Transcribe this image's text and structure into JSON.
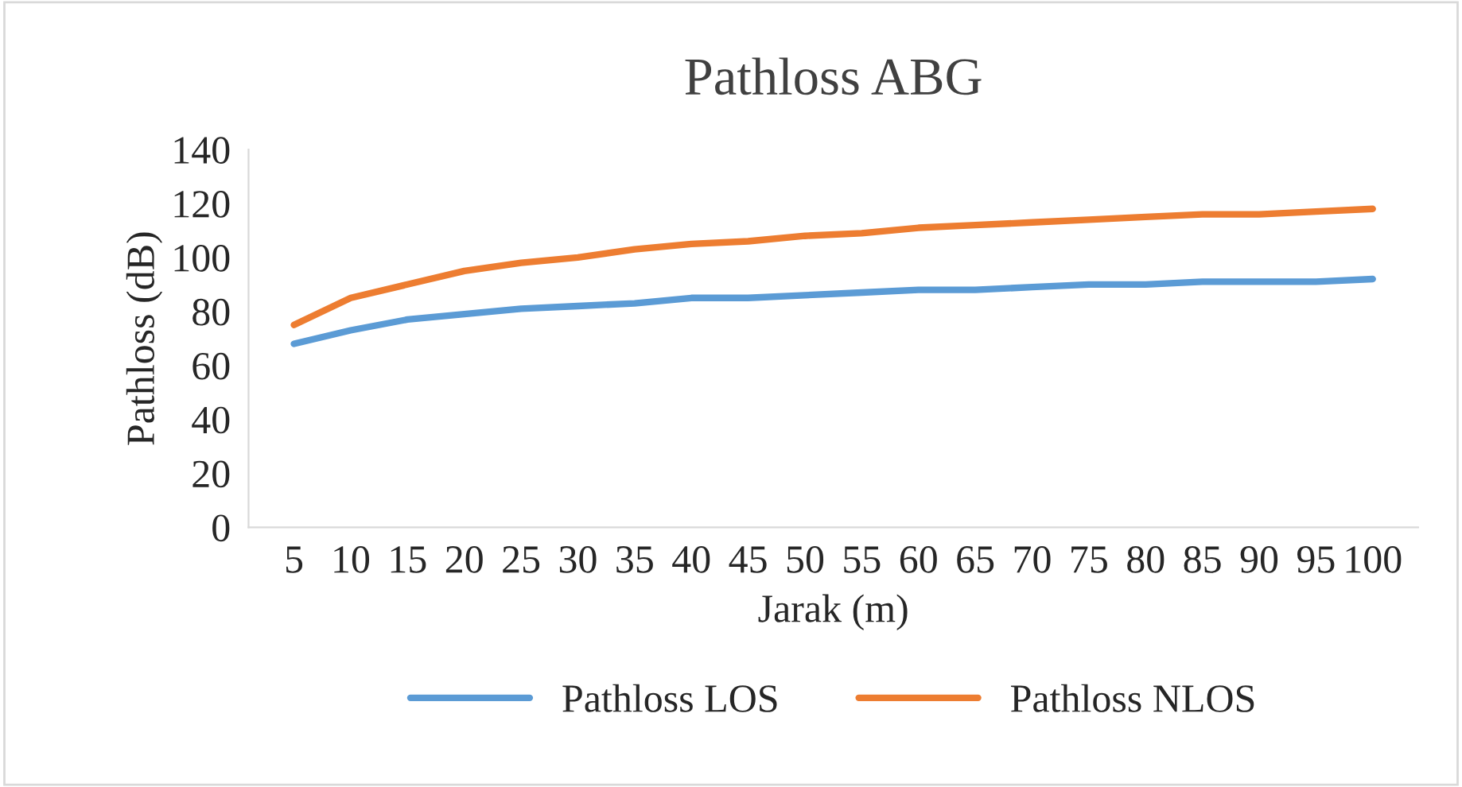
{
  "chart_data": {
    "type": "line",
    "title": "Pathloss ABG",
    "xlabel": "Jarak (m)",
    "ylabel": "Pathloss (dB)",
    "categories": [
      "5",
      "10",
      "15",
      "20",
      "25",
      "30",
      "35",
      "40",
      "45",
      "50",
      "55",
      "60",
      "65",
      "70",
      "75",
      "80",
      "85",
      "90",
      "95",
      "100"
    ],
    "series": [
      {
        "name": "Pathloss LOS",
        "color": "#5b9bd5",
        "values": [
          68,
          73,
          77,
          79,
          81,
          82,
          83,
          85,
          85,
          86,
          87,
          88,
          88,
          89,
          90,
          90,
          91,
          91,
          91,
          92
        ]
      },
      {
        "name": "Pathloss NLOS",
        "color": "#ed7d31",
        "values": [
          75,
          85,
          90,
          95,
          98,
          100,
          103,
          105,
          106,
          108,
          109,
          111,
          112,
          113,
          114,
          115,
          116,
          116,
          117,
          118
        ]
      }
    ],
    "ylim": [
      0,
      140
    ],
    "yticks": [
      0,
      20,
      40,
      60,
      80,
      100,
      120,
      140
    ],
    "grid": false,
    "legend": "bottom",
    "marker": "none",
    "line_style": "solid"
  }
}
